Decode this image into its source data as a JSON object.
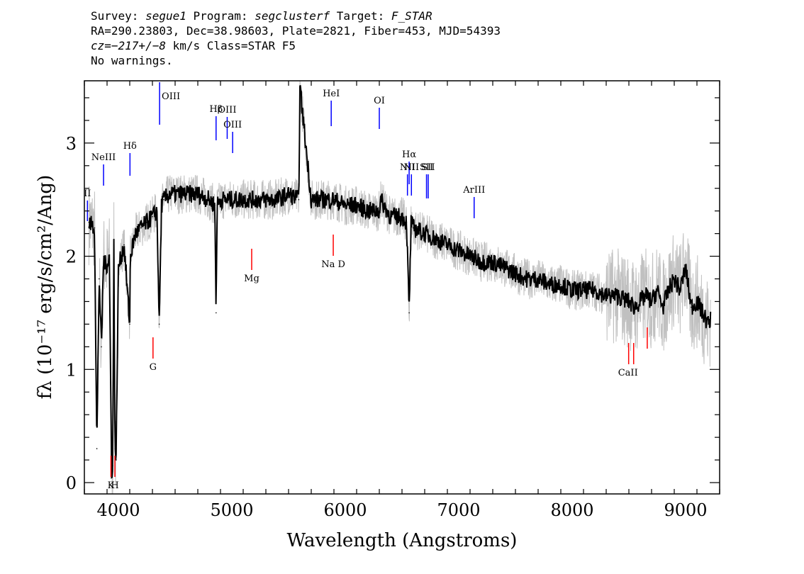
{
  "header": {
    "line1": {
      "survey_label": "Survey: ",
      "survey": "segue1",
      "program_label": " Program: ",
      "program": "segclusterf",
      "target_label": " Target: ",
      "target": "F_STAR"
    },
    "line2": "RA=290.23803, Dec=38.98603, Plate=2821, Fiber=453, MJD=54393",
    "line3": {
      "cz": "cz=−217+/−8",
      "rest": " km/s Class=STAR F5"
    },
    "line4": "No warnings."
  },
  "chart_data": {
    "type": "line",
    "xlabel": "Wavelength (Angstroms)",
    "ylabel": "fλ (10⁻¹⁷ erg/s/cm²/Ang)",
    "xlim": [
      3700,
      9300
    ],
    "ylim": [
      -0.1,
      3.55
    ],
    "xticks": [
      4000,
      5000,
      6000,
      7000,
      8000,
      9000
    ],
    "yticks": [
      0,
      1,
      2,
      3
    ],
    "grid": false,
    "series": [
      {
        "style": "black smoothed flux",
        "x": [
          3740,
          3790,
          3810,
          3830,
          3850,
          3870,
          3890,
          3920,
          3940,
          3950,
          3960,
          3970,
          3980,
          4000,
          4050,
          4100,
          4105,
          4150,
          4200,
          4250,
          4300,
          4340,
          4360,
          4380,
          4400,
          4450,
          4500,
          4600,
          4700,
          4800,
          4850,
          4861,
          4870,
          4900,
          4950,
          5000,
          5100,
          5200,
          5300,
          5400,
          5500,
          5590,
          5600,
          5700,
          5800,
          5890,
          5900,
          6000,
          6100,
          6200,
          6300,
          6310,
          6400,
          6500,
          6540,
          6563,
          6580,
          6600,
          6700,
          6800,
          6900,
          7000,
          7100,
          7200,
          7300,
          7400,
          7500,
          7600,
          7700,
          7800,
          7900,
          8000,
          8100,
          8200,
          8300,
          8400,
          8500,
          8550,
          8600,
          8650,
          8700,
          8750,
          8800,
          8850,
          8900,
          8950,
          9000,
          9050,
          9100,
          9150,
          9200,
          9220
        ],
        "y": [
          2.3,
          2.25,
          0.3,
          1.8,
          1.2,
          2.0,
          1.9,
          2.0,
          0.1,
          0.15,
          2.1,
          0.3,
          0.2,
          1.9,
          2.1,
          1.4,
          2.0,
          2.2,
          2.25,
          2.3,
          2.35,
          2.4,
          1.4,
          2.45,
          2.5,
          2.55,
          2.55,
          2.55,
          2.55,
          2.5,
          2.45,
          1.5,
          2.45,
          2.5,
          2.5,
          2.5,
          2.5,
          2.5,
          2.5,
          2.5,
          2.55,
          2.5,
          3.5,
          2.5,
          2.5,
          2.5,
          2.5,
          2.45,
          2.45,
          2.4,
          2.4,
          2.5,
          2.35,
          2.35,
          2.3,
          1.5,
          2.3,
          2.25,
          2.2,
          2.15,
          2.1,
          2.05,
          2.0,
          1.95,
          1.95,
          1.9,
          1.85,
          1.8,
          1.8,
          1.75,
          1.75,
          1.7,
          1.7,
          1.7,
          1.65,
          1.65,
          1.6,
          1.55,
          1.6,
          1.65,
          1.6,
          1.7,
          1.55,
          1.7,
          1.8,
          1.7,
          1.9,
          1.55,
          1.6,
          1.5,
          1.4,
          1.45
        ]
      }
    ],
    "emission_lines": [
      {
        "label": "OIII",
        "x": 4363
      },
      {
        "label": "Hβ",
        "x": 4861
      },
      {
        "label": "OIII",
        "x": 4959
      },
      {
        "label": "OIII",
        "x": 5007
      },
      {
        "label": "HeI",
        "x": 5876
      },
      {
        "label": "OI",
        "x": 6300
      },
      {
        "label": "NII",
        "x": 6548
      },
      {
        "label": "Hα",
        "x": 6563
      },
      {
        "label": "NII",
        "x": 6583
      },
      {
        "label": "SII",
        "x": 6716
      },
      {
        "label": "SII",
        "x": 6731
      },
      {
        "label": "ArIII",
        "x": 7136
      },
      {
        "label": "NeIII",
        "x": 3869
      },
      {
        "label": "Hδ",
        "x": 4102
      },
      {
        "label": "II",
        "x": 3727
      }
    ],
    "absorption_lines": [
      {
        "label": "K",
        "x": 3934
      },
      {
        "label": "H",
        "x": 3969
      },
      {
        "label": "G",
        "x": 4305
      },
      {
        "label": "Mg",
        "x": 5175
      },
      {
        "label": "Na D",
        "x": 5894
      },
      {
        "label": "CaII",
        "x": 8498
      },
      {
        "label": "CaII",
        "x": 8542
      },
      {
        "label": "CaII",
        "x": 8662
      }
    ],
    "colors": {
      "flux": "#000000",
      "noise": "#c0c0c0",
      "emission": "#0000ff",
      "absorption": "#ff0000"
    }
  }
}
